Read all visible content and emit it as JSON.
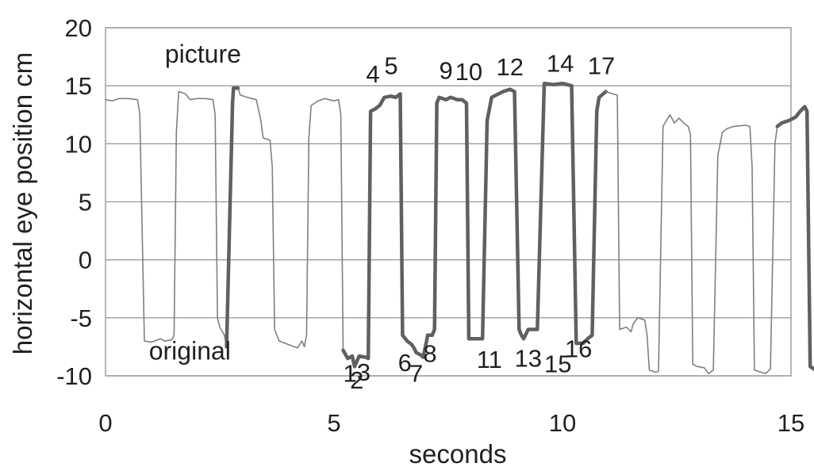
{
  "chart_data": {
    "type": "line",
    "title": "",
    "xlabel": "seconds",
    "ylabel": "horizontal eye position cm",
    "xlim": [
      0,
      15
    ],
    "ylim": [
      -10,
      20
    ],
    "x_ticks": [
      "0",
      "5",
      "10",
      "15"
    ],
    "x_tick_values": [
      0,
      5,
      10,
      15
    ],
    "y_ticks": [
      "20",
      "15",
      "10",
      "5",
      "0",
      "-5",
      "-10"
    ],
    "y_tick_values": [
      20,
      15,
      10,
      5,
      0,
      -5,
      -10
    ],
    "grid": "horizontal",
    "series": [
      {
        "style": "thin",
        "color": "#808080",
        "segments": [
          [
            [
              0.0,
              13.8
            ],
            [
              0.15,
              13.7
            ],
            [
              0.3,
              13.9
            ],
            [
              0.5,
              13.9
            ],
            [
              0.7,
              13.8
            ],
            [
              0.75,
              12.6
            ],
            [
              0.85,
              -7.0
            ],
            [
              1.0,
              -7.1
            ],
            [
              1.2,
              -6.8
            ],
            [
              1.3,
              -7.0
            ],
            [
              1.45,
              -6.9
            ],
            [
              1.5,
              -6.5
            ],
            [
              1.55,
              11.0
            ],
            [
              1.6,
              14.5
            ],
            [
              1.75,
              14.3
            ],
            [
              1.85,
              13.8
            ],
            [
              2.0,
              13.9
            ],
            [
              2.2,
              13.9
            ],
            [
              2.35,
              13.8
            ],
            [
              2.4,
              12.5
            ],
            [
              2.45,
              -5.0
            ],
            [
              2.5,
              -5.8
            ],
            [
              2.6,
              -6.5
            ],
            [
              2.65,
              -7.5
            ]
          ],
          [
            [
              2.9,
              14.8
            ],
            [
              2.95,
              14.2
            ],
            [
              3.1,
              14.0
            ],
            [
              3.3,
              13.8
            ],
            [
              3.4,
              12.0
            ],
            [
              3.45,
              10.5
            ],
            [
              3.6,
              10.3
            ],
            [
              3.65,
              8.0
            ],
            [
              3.7,
              -6.0
            ],
            [
              3.8,
              -7.0
            ],
            [
              4.0,
              -7.3
            ],
            [
              4.2,
              -7.6
            ],
            [
              4.3,
              -7.0
            ],
            [
              4.35,
              -7.5
            ],
            [
              4.4,
              -6.5
            ],
            [
              4.45,
              10.5
            ],
            [
              4.5,
              13.3
            ],
            [
              4.65,
              13.7
            ],
            [
              4.8,
              13.9
            ],
            [
              5.0,
              13.7
            ],
            [
              5.1,
              13.8
            ],
            [
              5.15,
              12.5
            ],
            [
              5.2,
              -7.8
            ]
          ]
        ]
      },
      {
        "style": "thick",
        "color": "#606060",
        "segments": [
          [
            [
              2.65,
              -7.5
            ],
            [
              2.78,
              13.5
            ],
            [
              2.8,
              14.8
            ],
            [
              2.9,
              14.8
            ]
          ],
          [
            [
              5.2,
              -7.8
            ],
            [
              5.3,
              -8.5
            ],
            [
              5.4,
              -8.3
            ],
            [
              5.45,
              -9.2
            ],
            [
              5.55,
              -8.3
            ],
            [
              5.7,
              -8.4
            ],
            [
              5.75,
              -8.5
            ],
            [
              5.8,
              12.8
            ],
            [
              5.9,
              13.0
            ],
            [
              6.0,
              13.3
            ],
            [
              6.1,
              14.0
            ],
            [
              6.25,
              14.1
            ],
            [
              6.35,
              14.0
            ],
            [
              6.45,
              14.3
            ],
            [
              6.5,
              -6.5
            ],
            [
              6.6,
              -7.0
            ],
            [
              6.7,
              -7.3
            ],
            [
              6.75,
              -7.6
            ],
            [
              6.8,
              -8.0
            ],
            [
              6.9,
              -8.2
            ],
            [
              6.95,
              -8.4
            ],
            [
              7.0,
              -7.5
            ],
            [
              7.05,
              -6.5
            ],
            [
              7.15,
              -6.5
            ],
            [
              7.2,
              -6.0
            ],
            [
              7.25,
              13.5
            ],
            [
              7.3,
              14.0
            ],
            [
              7.45,
              13.8
            ],
            [
              7.55,
              14.0
            ],
            [
              7.7,
              13.8
            ],
            [
              7.8,
              13.8
            ],
            [
              7.9,
              13.5
            ],
            [
              7.95,
              -6.8
            ],
            [
              8.05,
              -6.8
            ],
            [
              8.25,
              -6.8
            ],
            [
              8.35,
              12.0
            ],
            [
              8.45,
              14.0
            ],
            [
              8.55,
              14.2
            ],
            [
              8.7,
              14.5
            ],
            [
              8.85,
              14.7
            ],
            [
              8.95,
              14.5
            ],
            [
              9.05,
              -6.0
            ],
            [
              9.1,
              -6.5
            ],
            [
              9.15,
              -6.8
            ],
            [
              9.25,
              -6.0
            ],
            [
              9.4,
              -6.0
            ],
            [
              9.45,
              -6.0
            ],
            [
              9.6,
              15.2
            ],
            [
              9.8,
              15.1
            ],
            [
              10.0,
              15.2
            ],
            [
              10.2,
              15.0
            ],
            [
              10.3,
              -7.2
            ],
            [
              10.45,
              -7.2
            ],
            [
              10.55,
              -6.8
            ],
            [
              10.65,
              -6.5
            ],
            [
              10.75,
              12.8
            ],
            [
              10.8,
              14.0
            ],
            [
              10.95,
              14.5
            ]
          ]
        ]
      },
      {
        "style": "thin",
        "color": "#808080",
        "segments": [
          [
            [
              10.95,
              14.5
            ],
            [
              11.1,
              14.3
            ],
            [
              11.2,
              14.2
            ],
            [
              11.25,
              -6.0
            ],
            [
              11.4,
              -5.8
            ],
            [
              11.5,
              -6.2
            ],
            [
              11.55,
              -5.5
            ],
            [
              11.65,
              -5.0
            ],
            [
              11.8,
              -5.2
            ],
            [
              11.85,
              -6.5
            ],
            [
              11.9,
              -9.5
            ],
            [
              12.05,
              -9.7
            ],
            [
              12.1,
              -9.6
            ],
            [
              12.2,
              11.5
            ],
            [
              12.35,
              12.5
            ],
            [
              12.45,
              11.8
            ],
            [
              12.55,
              12.2
            ],
            [
              12.65,
              11.8
            ],
            [
              12.75,
              11.5
            ],
            [
              12.8,
              10.8
            ],
            [
              12.85,
              -9.0
            ],
            [
              12.95,
              -9.2
            ],
            [
              13.1,
              -9.3
            ],
            [
              13.2,
              -9.8
            ],
            [
              13.3,
              -9.5
            ],
            [
              13.4,
              9.0
            ],
            [
              13.5,
              11.0
            ],
            [
              13.6,
              11.3
            ],
            [
              13.75,
              11.5
            ],
            [
              14.0,
              11.6
            ],
            [
              14.1,
              11.5
            ],
            [
              14.15,
              8.0
            ],
            [
              14.2,
              -9.5
            ],
            [
              14.35,
              -9.7
            ],
            [
              14.45,
              -9.8
            ],
            [
              14.55,
              -9.4
            ],
            [
              14.65,
              10.0
            ],
            [
              14.7,
              11.5
            ]
          ]
        ]
      },
      {
        "style": "thick",
        "color": "#606060",
        "segments": [
          [
            [
              14.7,
              11.5
            ],
            [
              14.8,
              11.8
            ],
            [
              14.95,
              12.0
            ],
            [
              15.1,
              12.3
            ],
            [
              15.2,
              12.8
            ],
            [
              15.3,
              13.2
            ],
            [
              15.35,
              12.8
            ],
            [
              15.42,
              -9.2
            ],
            [
              15.5,
              -9.4
            ],
            [
              15.55,
              -9.6
            ]
          ]
        ]
      }
    ],
    "annotations": [
      {
        "text": "picture",
        "x": 1.3,
        "y": 17.0
      },
      {
        "text": "original",
        "x": 0.95,
        "y": -8.6
      }
    ],
    "numbered_labels": [
      {
        "text": "1",
        "x": 5.35,
        "y": -10.5
      },
      {
        "text": "2",
        "x": 5.5,
        "y": -11.1
      },
      {
        "text": "3",
        "x": 5.65,
        "y": -10.4
      },
      {
        "text": "4",
        "x": 5.85,
        "y": 15.3
      },
      {
        "text": "5",
        "x": 6.25,
        "y": 16.0
      },
      {
        "text": "6",
        "x": 6.55,
        "y": -9.6
      },
      {
        "text": "7",
        "x": 6.8,
        "y": -10.5
      },
      {
        "text": "8",
        "x": 7.1,
        "y": -8.8
      },
      {
        "text": "9",
        "x": 7.45,
        "y": 15.6
      },
      {
        "text": "10",
        "x": 7.95,
        "y": 15.5
      },
      {
        "text": "11",
        "x": 8.4,
        "y": -9.3
      },
      {
        "text": "12",
        "x": 8.85,
        "y": 15.9
      },
      {
        "text": "13",
        "x": 9.25,
        "y": -9.2
      },
      {
        "text": "14",
        "x": 9.95,
        "y": 16.2
      },
      {
        "text": "15",
        "x": 9.9,
        "y": -9.7
      },
      {
        "text": "16",
        "x": 10.35,
        "y": -8.4
      },
      {
        "text": "17",
        "x": 10.85,
        "y": 16.0
      }
    ]
  }
}
